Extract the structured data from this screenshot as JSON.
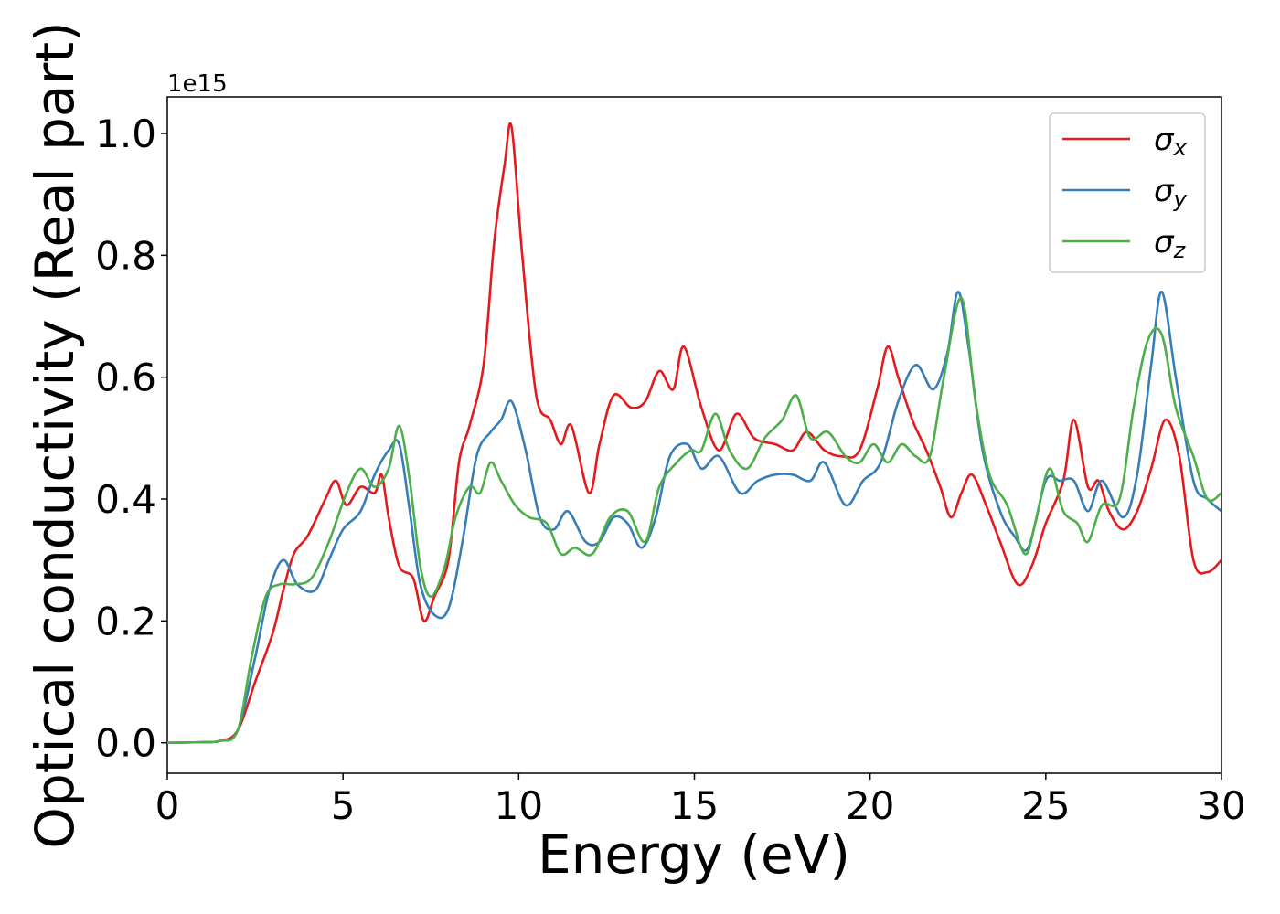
{
  "chart_data": {
    "type": "line",
    "xlabel": "Energy (eV)",
    "ylabel": "Optical conductivity (Real part)",
    "y_offset_label": "1e15",
    "xlim": [
      0,
      30
    ],
    "ylim": [
      -0.05,
      1.06
    ],
    "x_ticks": [
      0,
      5,
      10,
      15,
      20,
      25,
      30
    ],
    "x_tick_labels": [
      "0",
      "5",
      "10",
      "15",
      "20",
      "25",
      "30"
    ],
    "y_ticks": [
      0.0,
      0.2,
      0.4,
      0.6,
      0.8,
      1.0
    ],
    "y_tick_labels": [
      "0.0",
      "0.2",
      "0.4",
      "0.6",
      "0.8",
      "1.0"
    ],
    "grid": false,
    "legend_position": "top-right",
    "series": [
      {
        "name": "σx",
        "symbol": "σ",
        "subscript": "x",
        "color": "#e41a1c",
        "points": [
          [
            0,
            0
          ],
          [
            1,
            0.001
          ],
          [
            1.5,
            0.003
          ],
          [
            2,
            0.02
          ],
          [
            2.5,
            0.1
          ],
          [
            3,
            0.18
          ],
          [
            3.3,
            0.25
          ],
          [
            3.6,
            0.31
          ],
          [
            4,
            0.34
          ],
          [
            4.5,
            0.4
          ],
          [
            4.8,
            0.43
          ],
          [
            5.1,
            0.39
          ],
          [
            5.5,
            0.42
          ],
          [
            5.9,
            0.41
          ],
          [
            6.1,
            0.44
          ],
          [
            6.3,
            0.37
          ],
          [
            6.6,
            0.29
          ],
          [
            7,
            0.27
          ],
          [
            7.3,
            0.2
          ],
          [
            7.6,
            0.24
          ],
          [
            8,
            0.3
          ],
          [
            8.3,
            0.46
          ],
          [
            8.6,
            0.52
          ],
          [
            9,
            0.62
          ],
          [
            9.3,
            0.82
          ],
          [
            9.6,
            0.95
          ],
          [
            9.8,
            1.01
          ],
          [
            10.1,
            0.8
          ],
          [
            10.5,
            0.57
          ],
          [
            10.9,
            0.53
          ],
          [
            11.2,
            0.49
          ],
          [
            11.5,
            0.52
          ],
          [
            12,
            0.41
          ],
          [
            12.3,
            0.49
          ],
          [
            12.7,
            0.57
          ],
          [
            13.2,
            0.55
          ],
          [
            13.6,
            0.56
          ],
          [
            14,
            0.61
          ],
          [
            14.4,
            0.58
          ],
          [
            14.7,
            0.65
          ],
          [
            15.2,
            0.55
          ],
          [
            15.7,
            0.48
          ],
          [
            16.2,
            0.54
          ],
          [
            16.7,
            0.5
          ],
          [
            17.3,
            0.49
          ],
          [
            17.8,
            0.48
          ],
          [
            18.2,
            0.51
          ],
          [
            18.7,
            0.48
          ],
          [
            19.2,
            0.47
          ],
          [
            19.7,
            0.48
          ],
          [
            20.2,
            0.58
          ],
          [
            20.5,
            0.65
          ],
          [
            20.8,
            0.6
          ],
          [
            21.2,
            0.53
          ],
          [
            21.6,
            0.48
          ],
          [
            22,
            0.42
          ],
          [
            22.3,
            0.37
          ],
          [
            22.6,
            0.41
          ],
          [
            22.9,
            0.44
          ],
          [
            23.3,
            0.39
          ],
          [
            23.7,
            0.33
          ],
          [
            24.2,
            0.26
          ],
          [
            24.6,
            0.29
          ],
          [
            25,
            0.36
          ],
          [
            25.5,
            0.43
          ],
          [
            25.8,
            0.53
          ],
          [
            26.2,
            0.42
          ],
          [
            26.5,
            0.43
          ],
          [
            26.8,
            0.38
          ],
          [
            27.2,
            0.35
          ],
          [
            27.6,
            0.38
          ],
          [
            28,
            0.45
          ],
          [
            28.4,
            0.53
          ],
          [
            28.8,
            0.47
          ],
          [
            29.2,
            0.3
          ],
          [
            29.6,
            0.28
          ],
          [
            30,
            0.3
          ]
        ]
      },
      {
        "name": "σy",
        "symbol": "σ",
        "subscript": "y",
        "color": "#377eb8",
        "points": [
          [
            0,
            0
          ],
          [
            1,
            0.001
          ],
          [
            1.5,
            0.003
          ],
          [
            2,
            0.02
          ],
          [
            2.5,
            0.14
          ],
          [
            2.9,
            0.25
          ],
          [
            3.3,
            0.3
          ],
          [
            3.7,
            0.26
          ],
          [
            4.2,
            0.25
          ],
          [
            4.6,
            0.3
          ],
          [
            5,
            0.35
          ],
          [
            5.5,
            0.38
          ],
          [
            5.9,
            0.44
          ],
          [
            6.3,
            0.48
          ],
          [
            6.6,
            0.49
          ],
          [
            6.9,
            0.38
          ],
          [
            7.2,
            0.26
          ],
          [
            7.6,
            0.21
          ],
          [
            8,
            0.22
          ],
          [
            8.4,
            0.33
          ],
          [
            8.8,
            0.47
          ],
          [
            9.2,
            0.51
          ],
          [
            9.5,
            0.53
          ],
          [
            9.8,
            0.56
          ],
          [
            10.2,
            0.48
          ],
          [
            10.6,
            0.37
          ],
          [
            11,
            0.35
          ],
          [
            11.4,
            0.38
          ],
          [
            11.9,
            0.33
          ],
          [
            12.3,
            0.33
          ],
          [
            12.7,
            0.37
          ],
          [
            13.1,
            0.36
          ],
          [
            13.5,
            0.32
          ],
          [
            13.9,
            0.37
          ],
          [
            14.3,
            0.47
          ],
          [
            14.8,
            0.49
          ],
          [
            15.2,
            0.45
          ],
          [
            15.7,
            0.47
          ],
          [
            16.3,
            0.41
          ],
          [
            16.8,
            0.43
          ],
          [
            17.3,
            0.44
          ],
          [
            17.8,
            0.44
          ],
          [
            18.3,
            0.43
          ],
          [
            18.7,
            0.46
          ],
          [
            19.3,
            0.39
          ],
          [
            19.8,
            0.43
          ],
          [
            20.3,
            0.46
          ],
          [
            20.8,
            0.56
          ],
          [
            21.3,
            0.62
          ],
          [
            21.8,
            0.58
          ],
          [
            22.2,
            0.64
          ],
          [
            22.5,
            0.74
          ],
          [
            22.8,
            0.65
          ],
          [
            23.2,
            0.48
          ],
          [
            23.7,
            0.38
          ],
          [
            24.1,
            0.34
          ],
          [
            24.5,
            0.32
          ],
          [
            25,
            0.43
          ],
          [
            25.4,
            0.43
          ],
          [
            25.8,
            0.43
          ],
          [
            26.2,
            0.38
          ],
          [
            26.6,
            0.43
          ],
          [
            27.2,
            0.37
          ],
          [
            27.6,
            0.44
          ],
          [
            28,
            0.62
          ],
          [
            28.3,
            0.74
          ],
          [
            28.7,
            0.6
          ],
          [
            29.2,
            0.43
          ],
          [
            29.6,
            0.4
          ],
          [
            30,
            0.38
          ]
        ]
      },
      {
        "name": "σz",
        "symbol": "σ",
        "subscript": "z",
        "color": "#4daf4a",
        "points": [
          [
            0,
            0
          ],
          [
            1,
            0.001
          ],
          [
            1.5,
            0.003
          ],
          [
            2,
            0.02
          ],
          [
            2.4,
            0.14
          ],
          [
            2.8,
            0.24
          ],
          [
            3.2,
            0.26
          ],
          [
            3.6,
            0.26
          ],
          [
            4.1,
            0.27
          ],
          [
            4.6,
            0.33
          ],
          [
            5.1,
            0.41
          ],
          [
            5.5,
            0.45
          ],
          [
            5.9,
            0.42
          ],
          [
            6.3,
            0.45
          ],
          [
            6.6,
            0.52
          ],
          [
            6.9,
            0.43
          ],
          [
            7.2,
            0.29
          ],
          [
            7.5,
            0.24
          ],
          [
            7.9,
            0.29
          ],
          [
            8.2,
            0.37
          ],
          [
            8.6,
            0.42
          ],
          [
            8.9,
            0.41
          ],
          [
            9.2,
            0.46
          ],
          [
            9.5,
            0.43
          ],
          [
            9.9,
            0.39
          ],
          [
            10.3,
            0.37
          ],
          [
            10.8,
            0.36
          ],
          [
            11.2,
            0.31
          ],
          [
            11.6,
            0.32
          ],
          [
            12.1,
            0.31
          ],
          [
            12.6,
            0.37
          ],
          [
            13.1,
            0.38
          ],
          [
            13.6,
            0.33
          ],
          [
            14,
            0.42
          ],
          [
            14.5,
            0.46
          ],
          [
            14.9,
            0.48
          ],
          [
            15.2,
            0.48
          ],
          [
            15.6,
            0.54
          ],
          [
            16,
            0.48
          ],
          [
            16.5,
            0.45
          ],
          [
            17,
            0.5
          ],
          [
            17.5,
            0.53
          ],
          [
            17.9,
            0.57
          ],
          [
            18.3,
            0.5
          ],
          [
            18.8,
            0.51
          ],
          [
            19.3,
            0.47
          ],
          [
            19.7,
            0.46
          ],
          [
            20.1,
            0.49
          ],
          [
            20.5,
            0.46
          ],
          [
            20.9,
            0.49
          ],
          [
            21.3,
            0.47
          ],
          [
            21.7,
            0.47
          ],
          [
            22.1,
            0.6
          ],
          [
            22.6,
            0.73
          ],
          [
            23,
            0.56
          ],
          [
            23.4,
            0.44
          ],
          [
            23.9,
            0.39
          ],
          [
            24.4,
            0.31
          ],
          [
            24.7,
            0.36
          ],
          [
            25.1,
            0.45
          ],
          [
            25.5,
            0.38
          ],
          [
            25.9,
            0.36
          ],
          [
            26.2,
            0.33
          ],
          [
            26.6,
            0.39
          ],
          [
            27.1,
            0.4
          ],
          [
            27.5,
            0.55
          ],
          [
            27.9,
            0.66
          ],
          [
            28.3,
            0.67
          ],
          [
            28.7,
            0.55
          ],
          [
            29.2,
            0.47
          ],
          [
            29.6,
            0.4
          ],
          [
            30,
            0.41
          ]
        ]
      }
    ]
  }
}
